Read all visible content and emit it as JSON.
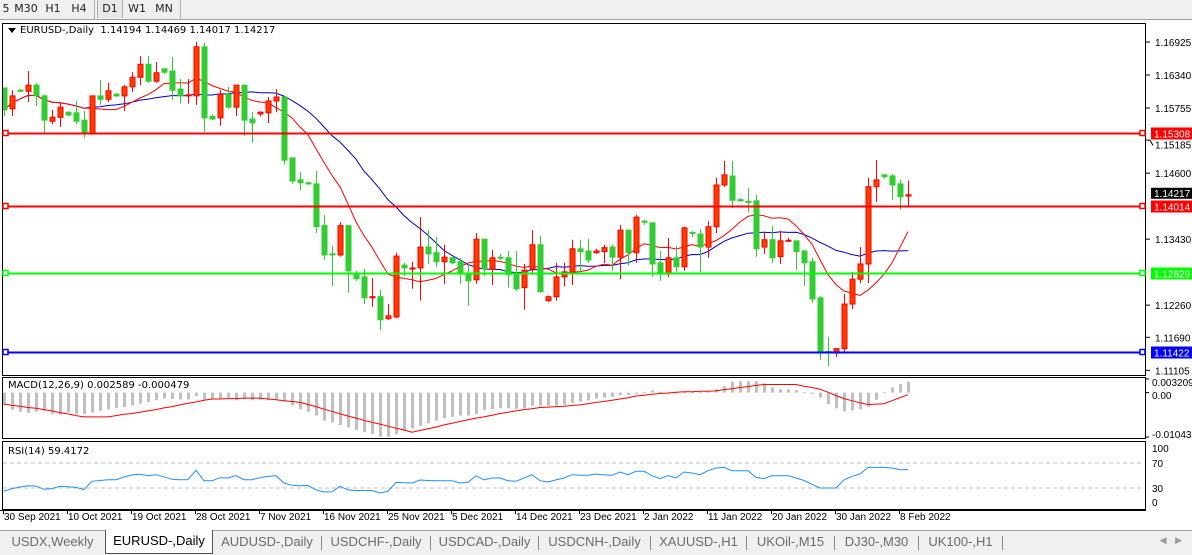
{
  "toolbar": {
    "timeframes": [
      {
        "label": "5",
        "active": false
      },
      {
        "label": "M30",
        "active": false
      },
      {
        "label": "H1",
        "active": false
      },
      {
        "label": "H4",
        "active": false
      },
      {
        "label": "D1",
        "active": true
      },
      {
        "label": "W1",
        "active": false
      },
      {
        "label": "MN",
        "active": false
      }
    ]
  },
  "chart": {
    "symbol": "EURUSD-,Daily",
    "ohlc_text": "1.14194 1.14469 1.14017 1.14217",
    "price_ticks": [
      "1.16925",
      "1.16340",
      "1.15755",
      "1.15185",
      "1.14600",
      "1.13430",
      "1.12260",
      "1.11690",
      "1.11105"
    ],
    "current_price": "1.14217",
    "horizontal_lines": [
      {
        "price": "1.15308",
        "color": "#ff0000"
      },
      {
        "price": "1.14014",
        "color": "#ff0000"
      },
      {
        "price": "1.12829",
        "color": "#00ff00"
      },
      {
        "price": "1.11422",
        "color": "#0000ff"
      }
    ],
    "date_labels": [
      "30 Sep 2021",
      "10 Oct 2021",
      "19 Oct 2021",
      "28 Oct 2021",
      "7 Nov 2021",
      "16 Nov 2021",
      "25 Nov 2021",
      "5 Dec 2021",
      "14 Dec 2021",
      "23 Dec 2021",
      "2 Jan 2022",
      "11 Jan 2022",
      "20 Jan 2022",
      "30 Jan 2022",
      "8 Feb 2022"
    ],
    "colors": {
      "bull": "#ff0000",
      "bull_fill": "#ff3c00",
      "bear": "#32cd32",
      "ma_fast": "#ff0000",
      "ma_slow": "#0000c0",
      "macd_hist": "#c0c0c0",
      "macd_signal": "#ff0000",
      "rsi": "#1e90ff"
    }
  },
  "macd": {
    "title": "MACD(12,26,9) 0.002589 -0.000479",
    "ticks": [
      "0.003209",
      "0.00",
      "-0.010433"
    ]
  },
  "rsi": {
    "title": "RSI(14) 59.4172",
    "ticks": [
      "100",
      "70",
      "30",
      "0"
    ]
  },
  "tabs": [
    {
      "label": "USDX,Weekly",
      "active": false
    },
    {
      "label": "EURUSD-,Daily",
      "active": true
    },
    {
      "label": "AUDUSD-,Daily",
      "active": false
    },
    {
      "label": "USDCHF-,Daily",
      "active": false
    },
    {
      "label": "USDCAD-,Daily",
      "active": false
    },
    {
      "label": "USDCNH-,Daily",
      "active": false
    },
    {
      "label": "XAUUSD-,H1",
      "active": false
    },
    {
      "label": "UKOil-,M15",
      "active": false
    },
    {
      "label": "DJ30-,M30",
      "active": false
    },
    {
      "label": "UK100-,H1",
      "active": false
    }
  ],
  "chart_data": {
    "type": "candlestick",
    "ylim": [
      1.11105,
      1.16925
    ],
    "ohlc": [
      [
        1.1611,
        1.1611,
        1.1561,
        1.1572
      ],
      [
        1.1574,
        1.1607,
        1.1561,
        1.1597
      ],
      [
        1.1607,
        1.1609,
        1.1604,
        1.1606
      ],
      [
        1.1605,
        1.1641,
        1.1586,
        1.1616
      ],
      [
        1.1616,
        1.162,
        1.1579,
        1.1597
      ],
      [
        1.1597,
        1.1599,
        1.1529,
        1.1554
      ],
      [
        1.1552,
        1.1572,
        1.1547,
        1.1559
      ],
      [
        1.1559,
        1.1586,
        1.1542,
        1.1577
      ],
      [
        1.1568,
        1.157,
        1.1561,
        1.1563
      ],
      [
        1.1567,
        1.1588,
        1.1547,
        1.1552
      ],
      [
        1.1554,
        1.157,
        1.1522,
        1.1531
      ],
      [
        1.1531,
        1.1597,
        1.1528,
        1.1597
      ],
      [
        1.1597,
        1.1625,
        1.1581,
        1.1591
      ],
      [
        1.1591,
        1.162,
        1.1586,
        1.1606
      ],
      [
        1.16,
        1.1602,
        1.1595,
        1.1597
      ],
      [
        1.1597,
        1.1616,
        1.157,
        1.1613
      ],
      [
        1.1613,
        1.1639,
        1.1604,
        1.163
      ],
      [
        1.163,
        1.1668,
        1.1616,
        1.1653
      ],
      [
        1.1653,
        1.1668,
        1.162,
        1.1623
      ],
      [
        1.1623,
        1.1657,
        1.162,
        1.1638
      ],
      [
        1.1645,
        1.1645,
        1.1636,
        1.1639
      ],
      [
        1.1641,
        1.1666,
        1.159,
        1.1607
      ],
      [
        1.1609,
        1.1627,
        1.1583,
        1.1597
      ],
      [
        1.1597,
        1.1627,
        1.1583,
        1.1599
      ],
      [
        1.1597,
        1.1693,
        1.1581,
        1.1684
      ],
      [
        1.1684,
        1.1691,
        1.1533,
        1.1558
      ],
      [
        1.1561,
        1.1563,
        1.1554,
        1.1556
      ],
      [
        1.1558,
        1.1607,
        1.1544,
        1.16
      ],
      [
        1.16,
        1.1613,
        1.1574,
        1.1577
      ],
      [
        1.1577,
        1.1616,
        1.1561,
        1.1616
      ],
      [
        1.1616,
        1.1616,
        1.1526,
        1.1554
      ],
      [
        1.1556,
        1.1568,
        1.1514,
        1.1549
      ],
      [
        1.1565,
        1.157,
        1.1561,
        1.1568
      ],
      [
        1.1567,
        1.1595,
        1.1549,
        1.1588
      ],
      [
        1.1588,
        1.1609,
        1.1568,
        1.1595
      ],
      [
        1.1595,
        1.1595,
        1.1476,
        1.1483
      ],
      [
        1.1487,
        1.1487,
        1.1441,
        1.1446
      ],
      [
        1.1448,
        1.1462,
        1.143,
        1.1443
      ],
      [
        1.1443,
        1.1445,
        1.1439,
        1.1441
      ],
      [
        1.1441,
        1.1464,
        1.1354,
        1.1365
      ],
      [
        1.1367,
        1.1386,
        1.1306,
        1.1315
      ],
      [
        1.1317,
        1.1331,
        1.126,
        1.1315
      ],
      [
        1.1315,
        1.1373,
        1.1312,
        1.1367
      ],
      [
        1.1367,
        1.1368,
        1.1248,
        1.1287
      ],
      [
        1.1281,
        1.1287,
        1.1269,
        1.1273
      ],
      [
        1.1276,
        1.129,
        1.1228,
        1.1239
      ],
      [
        1.1239,
        1.1274,
        1.1223,
        1.1241
      ],
      [
        1.1241,
        1.1253,
        1.1182,
        1.12
      ],
      [
        1.1202,
        1.1228,
        1.12,
        1.1207
      ],
      [
        1.1205,
        1.1319,
        1.1203,
        1.1313
      ],
      [
        1.1297,
        1.1301,
        1.1278,
        1.1292
      ],
      [
        1.129,
        1.1303,
        1.1255,
        1.1292
      ],
      [
        1.1292,
        1.1382,
        1.1234,
        1.1329
      ],
      [
        1.1329,
        1.1359,
        1.1299,
        1.1317
      ],
      [
        1.1319,
        1.1347,
        1.1294,
        1.1303
      ],
      [
        1.1303,
        1.1333,
        1.1264,
        1.1311
      ],
      [
        1.131,
        1.1311,
        1.1299,
        1.1301
      ],
      [
        1.1303,
        1.131,
        1.1264,
        1.1281
      ],
      [
        1.1281,
        1.1299,
        1.1225,
        1.1269
      ],
      [
        1.1271,
        1.1354,
        1.1264,
        1.1343
      ],
      [
        1.1343,
        1.1343,
        1.1278,
        1.129
      ],
      [
        1.129,
        1.1324,
        1.1262,
        1.131
      ],
      [
        1.1311,
        1.1317,
        1.1306,
        1.131
      ],
      [
        1.131,
        1.1322,
        1.1257,
        1.128
      ],
      [
        1.1283,
        1.1322,
        1.1251,
        1.1255
      ],
      [
        1.1257,
        1.1299,
        1.1218,
        1.1288
      ],
      [
        1.129,
        1.1359,
        1.128,
        1.1333
      ],
      [
        1.1333,
        1.1349,
        1.1248,
        1.125
      ],
      [
        1.1234,
        1.1243,
        1.1232,
        1.1241
      ],
      [
        1.1241,
        1.1301,
        1.1234,
        1.1276
      ],
      [
        1.1276,
        1.1301,
        1.1259,
        1.1285
      ],
      [
        1.1285,
        1.1342,
        1.1262,
        1.1326
      ],
      [
        1.1326,
        1.1342,
        1.1285,
        1.1321
      ],
      [
        1.1322,
        1.1344,
        1.1301,
        1.1306
      ],
      [
        1.1319,
        1.1326,
        1.1317,
        1.1322
      ],
      [
        1.1321,
        1.1333,
        1.1301,
        1.1328
      ],
      [
        1.1329,
        1.1333,
        1.1287,
        1.1311
      ],
      [
        1.1311,
        1.1368,
        1.1272,
        1.1359
      ],
      [
        1.1359,
        1.1359,
        1.1296,
        1.1319
      ],
      [
        1.1319,
        1.1386,
        1.1301,
        1.1382
      ],
      [
        1.1375,
        1.1377,
        1.1368,
        1.1373
      ],
      [
        1.1372,
        1.1372,
        1.1276,
        1.1299
      ],
      [
        1.1301,
        1.1322,
        1.1269,
        1.1281
      ],
      [
        1.1281,
        1.1345,
        1.1276,
        1.131
      ],
      [
        1.131,
        1.1331,
        1.1285,
        1.1294
      ],
      [
        1.1294,
        1.1365,
        1.1287,
        1.1363
      ],
      [
        1.1355,
        1.1357,
        1.1347,
        1.1354
      ],
      [
        1.1352,
        1.1361,
        1.1285,
        1.1329
      ],
      [
        1.1329,
        1.1375,
        1.131,
        1.1365
      ],
      [
        1.1365,
        1.1452,
        1.1354,
        1.1439
      ],
      [
        1.1439,
        1.1482,
        1.1436,
        1.1457
      ],
      [
        1.1455,
        1.1482,
        1.1398,
        1.1412
      ],
      [
        1.1413,
        1.1416,
        1.1409,
        1.1411
      ],
      [
        1.141,
        1.1434,
        1.1391,
        1.1409
      ],
      [
        1.1411,
        1.1422,
        1.1312,
        1.1326
      ],
      [
        1.1329,
        1.1356,
        1.1317,
        1.1342
      ],
      [
        1.1342,
        1.1366,
        1.1301,
        1.131
      ],
      [
        1.1312,
        1.1358,
        1.1299,
        1.134
      ],
      [
        1.134,
        1.1345,
        1.1338,
        1.1341
      ],
      [
        1.134,
        1.134,
        1.1288,
        1.1321
      ],
      [
        1.1322,
        1.1324,
        1.126,
        1.1301
      ],
      [
        1.1303,
        1.131,
        1.123,
        1.1237
      ],
      [
        1.1239,
        1.1242,
        1.1129,
        1.1141
      ],
      [
        1.1144,
        1.117,
        1.1118,
        1.1143
      ],
      [
        1.1141,
        1.1149,
        1.1134,
        1.1149
      ],
      [
        1.1149,
        1.1246,
        1.1141,
        1.1228
      ],
      [
        1.1228,
        1.1285,
        1.1219,
        1.1272
      ],
      [
        1.1272,
        1.1329,
        1.1265,
        1.1299
      ],
      [
        1.1299,
        1.1452,
        1.1265,
        1.1436
      ],
      [
        1.1436,
        1.1483,
        1.1409,
        1.1448
      ],
      [
        1.1457,
        1.1459,
        1.145,
        1.1454
      ],
      [
        1.1455,
        1.1459,
        1.1412,
        1.1439
      ],
      [
        1.1441,
        1.1448,
        1.1395,
        1.1418
      ],
      [
        1.14194,
        1.14469,
        1.14017,
        1.14217
      ]
    ],
    "macd_hist": [
      -0.003,
      -0.004,
      -0.0045,
      -0.0048,
      -0.0045,
      -0.0043,
      -0.005,
      -0.0052,
      -0.0045,
      -0.005,
      -0.005,
      -0.0047,
      -0.0043,
      -0.004,
      -0.0036,
      -0.0034,
      -0.003,
      -0.0026,
      -0.0022,
      -0.0018,
      -0.0014,
      -0.0015,
      -0.0016,
      -0.0016,
      -0.0008,
      -0.0016,
      -0.0014,
      -0.0016,
      -0.0012,
      -0.0018,
      -0.0016,
      -0.0018,
      -0.0017,
      -0.0018,
      -0.0017,
      -0.002,
      -0.003,
      -0.0039,
      -0.0045,
      -0.0054,
      -0.0066,
      -0.007,
      -0.0076,
      -0.0082,
      -0.0088,
      -0.0093,
      -0.0097,
      -0.0104,
      -0.0104,
      -0.0098,
      -0.0091,
      -0.0084,
      -0.0078,
      -0.0072,
      -0.0066,
      -0.006,
      -0.0057,
      -0.0054,
      -0.0054,
      -0.005,
      -0.0041,
      -0.0039,
      -0.0037,
      -0.0037,
      -0.0038,
      -0.0037,
      -0.0031,
      -0.0031,
      -0.0031,
      -0.0031,
      -0.0029,
      -0.0024,
      -0.0021,
      -0.0018,
      -0.0014,
      -0.0012,
      -0.001,
      -0.0006,
      -0.0005,
      -0.0003,
      0.0001,
      0.0005,
      0.0001,
      -0.0003,
      -0.0002,
      0.0001,
      0.0001,
      0.0001,
      0.0002,
      0.0008,
      0.0015,
      0.0026,
      0.0027,
      0.0027,
      0.0027,
      0.0022,
      0.0012,
      0.0008,
      0.0008,
      0.0006,
      0.0001,
      -0.0003,
      -0.0012,
      -0.0027,
      -0.0037,
      -0.0044,
      -0.0042,
      -0.0039,
      -0.0033,
      -0.0017,
      0.0001,
      0.0012,
      0.002,
      0.0026
    ],
    "macd_signal": [
      -0.0027,
      -0.003,
      -0.0032,
      -0.0035,
      -0.0037,
      -0.004,
      -0.0043,
      -0.0047,
      -0.005,
      -0.0054,
      -0.0057,
      -0.0057,
      -0.0057,
      -0.0057,
      -0.0054,
      -0.0051,
      -0.0049,
      -0.0046,
      -0.0043,
      -0.004,
      -0.0036,
      -0.0033,
      -0.0029,
      -0.0025,
      -0.0022,
      -0.0018,
      -0.0015,
      -0.0015,
      -0.0014,
      -0.0014,
      -0.0013,
      -0.0013,
      -0.0013,
      -0.0015,
      -0.0017,
      -0.0019,
      -0.0021,
      -0.0023,
      -0.0028,
      -0.0033,
      -0.0039,
      -0.0044,
      -0.005,
      -0.0055,
      -0.006,
      -0.0065,
      -0.007,
      -0.0074,
      -0.0079,
      -0.0084,
      -0.0088,
      -0.0093,
      -0.0089,
      -0.0085,
      -0.0081,
      -0.0076,
      -0.0072,
      -0.0068,
      -0.0064,
      -0.006,
      -0.0057,
      -0.0053,
      -0.0049,
      -0.0046,
      -0.0043,
      -0.004,
      -0.0038,
      -0.0035,
      -0.0034,
      -0.0033,
      -0.0032,
      -0.003,
      -0.0029,
      -0.0026,
      -0.0023,
      -0.0021,
      -0.0018,
      -0.0015,
      -0.0012,
      -0.0008,
      -0.0006,
      -0.0004,
      -0.0002,
      -0.0001,
      0.0001,
      0.0002,
      0.0002,
      0.0003,
      0.0003,
      0.0004,
      0.0007,
      0.0009,
      0.0012,
      0.0014,
      0.0017,
      0.0019,
      0.0019,
      0.0019,
      0.0019,
      0.0019,
      0.0015,
      0.0012,
      0.0008,
      0.0001,
      -0.0007,
      -0.0014,
      -0.0019,
      -0.0024,
      -0.0028,
      -0.0027,
      -0.0026,
      -0.0019,
      -0.0012,
      -0.0005
    ],
    "macd_ylim": [
      -0.010433,
      0.003209
    ],
    "rsi": [
      25,
      29,
      31.6,
      33.5,
      33,
      28,
      29,
      32.7,
      32,
      31,
      27.5,
      40.7,
      42,
      43.3,
      43.3,
      47.6,
      51,
      52,
      49.5,
      51.3,
      48,
      44,
      43.3,
      43.5,
      58.3,
      41.7,
      41.7,
      46.5,
      46,
      49.7,
      43.3,
      43.3,
      46.5,
      48.5,
      49.7,
      38,
      34.3,
      33.7,
      34,
      27,
      23.6,
      24,
      32.7,
      27,
      26,
      26,
      26,
      22,
      24.7,
      39,
      38.5,
      38,
      42.8,
      42,
      41.7,
      41.7,
      41.7,
      38,
      39,
      49.7,
      43,
      46,
      46,
      41.7,
      40.7,
      46,
      51.3,
      41.7,
      39.6,
      43,
      46,
      51.3,
      50.5,
      50.3,
      52.4,
      51,
      50.3,
      55.6,
      51.3,
      56.7,
      56.7,
      49.7,
      45,
      49.7,
      46,
      55.6,
      54,
      51.3,
      57.7,
      62,
      63,
      57.7,
      57.7,
      57.7,
      47,
      45,
      49.7,
      49.7,
      49.7,
      46,
      42,
      36,
      30,
      30,
      30,
      43,
      48.7,
      52.4,
      63,
      63,
      63,
      62,
      59.3,
      59.4172
    ],
    "rsi_levels": [
      70,
      30
    ],
    "rsi_ylim": [
      0,
      100
    ]
  }
}
